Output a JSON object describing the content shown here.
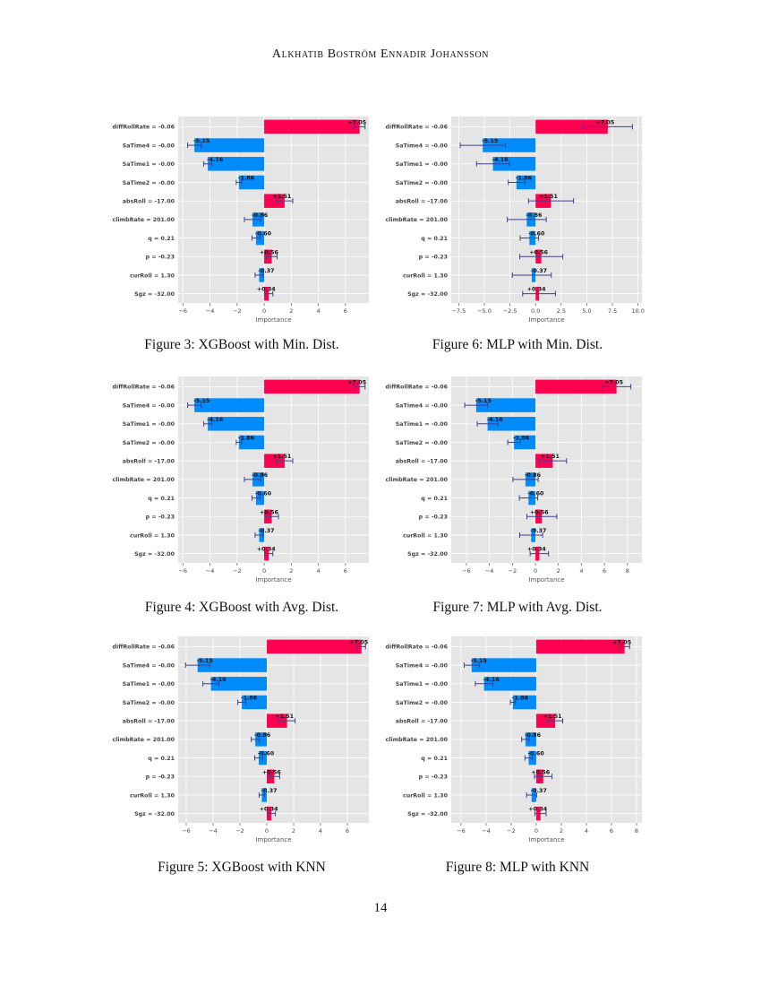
{
  "header": {
    "running_title": "Alkhatib Boström Ennadir Johansson"
  },
  "page_number": "14",
  "colors": {
    "positive": "#ff0051",
    "negative": "#008bfb",
    "error_bar": "#3f3f8f",
    "plot_background": "#e5e5e5",
    "grid": "#ffffff"
  },
  "figures": [
    {
      "caption": "Figure 3: XGBoost with Min. Dist."
    },
    {
      "caption": "Figure 6: MLP with Min. Dist."
    },
    {
      "caption": "Figure 4: XGBoost with Avg. Dist."
    },
    {
      "caption": "Figure 7: MLP with Avg. Dist."
    },
    {
      "caption": "Figure 5: XGBoost with KNN"
    },
    {
      "caption": "Figure 8: MLP with KNN"
    }
  ],
  "chart_data": [
    {
      "type": "bar",
      "orientation": "horizontal",
      "xlabel": "Importance",
      "grid": true,
      "categories": [
        "diffRollRate = -0.06",
        "SaTime4 = -0.00",
        "SaTime1 = -0.00",
        "SaTime2 = -0.00",
        "absRoll = -17.00",
        "climbRate = 201.00",
        "q = 0.21",
        "p = -0.23",
        "curRoll = 1.30",
        "Sgz = -32.00"
      ],
      "values": [
        7.05,
        -5.15,
        -4.16,
        -1.86,
        1.51,
        -0.86,
        -0.6,
        0.56,
        -0.37,
        0.34
      ],
      "value_labels": [
        "+7.05",
        "-5.15",
        "-4.16",
        "-1.86",
        "+1.51",
        "-0.86",
        "-0.60",
        "+0.56",
        "-0.37",
        "+0.34"
      ],
      "errors": [
        0.4,
        0.5,
        0.3,
        0.2,
        0.6,
        0.6,
        0.3,
        0.4,
        0.3,
        0.3
      ],
      "xlim": [
        -6.35,
        7.73
      ],
      "xticks": [
        -6,
        -4,
        -2,
        0,
        2,
        4,
        6
      ],
      "xtick_labels": [
        "−6",
        "−4",
        "−2",
        "0",
        "2",
        "4",
        "6"
      ]
    },
    {
      "type": "bar",
      "orientation": "horizontal",
      "xlabel": "Importance",
      "grid": true,
      "categories": [
        "diffRollRate = -0.06",
        "SaTime4 = -0.00",
        "SaTime1 = -0.00",
        "SaTime2 = -0.00",
        "absRoll = -17.00",
        "climbRate = 201.00",
        "q = 0.21",
        "p = -0.23",
        "curRoll = 1.30",
        "Sgz = -32.00"
      ],
      "values": [
        7.05,
        -5.15,
        -4.16,
        -1.86,
        1.51,
        -0.86,
        -0.6,
        0.56,
        -0.37,
        0.34
      ],
      "value_labels": [
        "+7.05",
        "-5.15",
        "-4.16",
        "-1.86",
        "+1.51",
        "-0.86",
        "-0.60",
        "+0.56",
        "-0.37",
        "+0.34"
      ],
      "errors": [
        2.4,
        2.2,
        1.6,
        0.8,
        2.2,
        1.9,
        0.9,
        2.1,
        1.9,
        1.6
      ],
      "xlim": [
        -8.23,
        10.38
      ],
      "xticks": [
        -7.5,
        -5,
        -2.5,
        0,
        2.5,
        5,
        7.5,
        10
      ],
      "xtick_labels": [
        "−7.5",
        "−5.0",
        "−2.5",
        "0.0",
        "2.5",
        "5.0",
        "7.5",
        "10.0"
      ]
    },
    {
      "type": "bar",
      "orientation": "horizontal",
      "xlabel": "Importance",
      "grid": true,
      "categories": [
        "diffRollRate = -0.06",
        "SaTime4 = -0.00",
        "SaTime1 = -0.00",
        "SaTime2 = -0.00",
        "absRoll = -17.00",
        "climbRate = 201.00",
        "q = 0.21",
        "p = -0.23",
        "curRoll = 1.30",
        "Sgz = -32.00"
      ],
      "values": [
        7.05,
        -5.15,
        -4.16,
        -1.86,
        1.51,
        -0.86,
        -0.6,
        0.56,
        -0.37,
        0.34
      ],
      "value_labels": [
        "+7.05",
        "-5.15",
        "-4.16",
        "-1.86",
        "+1.51",
        "-0.86",
        "-0.60",
        "+0.56",
        "-0.37",
        "+0.34"
      ],
      "errors": [
        0.4,
        0.5,
        0.3,
        0.2,
        0.6,
        0.6,
        0.3,
        0.5,
        0.3,
        0.3
      ],
      "xlim": [
        -6.35,
        7.73
      ],
      "xticks": [
        -6,
        -4,
        -2,
        0,
        2,
        4,
        6
      ],
      "xtick_labels": [
        "−6",
        "−4",
        "−2",
        "0",
        "2",
        "4",
        "6"
      ]
    },
    {
      "type": "bar",
      "orientation": "horizontal",
      "xlabel": "Importance",
      "grid": true,
      "categories": [
        "diffRollRate = -0.06",
        "SaTime4 = -0.00",
        "SaTime1 = -0.00",
        "SaTime2 = -0.00",
        "absRoll = -17.00",
        "climbRate = 201.00",
        "q = 0.21",
        "p = -0.23",
        "curRoll = 1.30",
        "Sgz = -32.00"
      ],
      "values": [
        7.05,
        -5.15,
        -4.16,
        -1.86,
        1.51,
        -0.86,
        -0.6,
        0.56,
        -0.37,
        0.34
      ],
      "value_labels": [
        "+7.05",
        "-5.15",
        "-4.16",
        "-1.86",
        "+1.51",
        "-0.86",
        "-0.60",
        "+0.56",
        "-0.37",
        "+0.34"
      ],
      "errors": [
        1.25,
        1.0,
        0.9,
        0.55,
        1.2,
        1.1,
        0.8,
        1.3,
        1.0,
        0.8
      ],
      "xlim": [
        -7.32,
        9.26
      ],
      "xticks": [
        -6,
        -4,
        -2,
        0,
        2,
        4,
        6,
        8
      ],
      "xtick_labels": [
        "−6",
        "−4",
        "−2",
        "0",
        "2",
        "4",
        "6",
        "8"
      ]
    },
    {
      "type": "bar",
      "orientation": "horizontal",
      "xlabel": "Importance",
      "grid": true,
      "categories": [
        "diffRollRate = -0.06",
        "SaTime4 = -0.00",
        "SaTime1 = -0.00",
        "SaTime2 = -0.00",
        "absRoll = -17.00",
        "climbRate = 201.00",
        "q = 0.21",
        "p = -0.23",
        "curRoll = 1.30",
        "Sgz = -32.00"
      ],
      "values": [
        7.05,
        -5.15,
        -4.16,
        -1.86,
        1.51,
        -0.86,
        -0.6,
        0.56,
        -0.37,
        0.34
      ],
      "value_labels": [
        "+7.05",
        "-5.15",
        "-4.16",
        "-1.86",
        "+1.51",
        "-0.86",
        "-0.60",
        "+0.56",
        "-0.37",
        "+0.34"
      ],
      "errors": [
        0.3,
        0.9,
        0.6,
        0.3,
        0.6,
        0.3,
        0.3,
        0.4,
        0.2,
        0.3
      ],
      "xlim": [
        -6.6,
        7.6
      ],
      "xticks": [
        -6,
        -4,
        -2,
        0,
        2,
        4,
        6
      ],
      "xtick_labels": [
        "−6",
        "−4",
        "−2",
        "0",
        "2",
        "4",
        "6"
      ]
    },
    {
      "type": "bar",
      "orientation": "horizontal",
      "xlabel": "Importance",
      "grid": true,
      "categories": [
        "diffRollRate = -0.06",
        "SaTime4 = -0.00",
        "SaTime1 = -0.00",
        "SaTime2 = -0.00",
        "absRoll = -17.00",
        "climbRate = 201.00",
        "q = 0.21",
        "p = -0.23",
        "curRoll = 1.30",
        "Sgz = -32.00"
      ],
      "values": [
        7.05,
        -5.15,
        -4.16,
        -1.86,
        1.51,
        -0.86,
        -0.6,
        0.56,
        -0.37,
        0.34
      ],
      "value_labels": [
        "+7.05",
        "-5.15",
        "-4.16",
        "-1.86",
        "+1.51",
        "-0.86",
        "-0.60",
        "+0.56",
        "-0.37",
        "+0.34"
      ],
      "errors": [
        0.4,
        0.6,
        0.7,
        0.2,
        0.6,
        0.3,
        0.3,
        0.7,
        0.4,
        0.45
      ],
      "xlim": [
        -6.78,
        8.43
      ],
      "xticks": [
        -6,
        -4,
        -2,
        0,
        2,
        4,
        6,
        8
      ],
      "xtick_labels": [
        "−6",
        "−4",
        "−2",
        "0",
        "2",
        "4",
        "6",
        "8"
      ]
    }
  ]
}
